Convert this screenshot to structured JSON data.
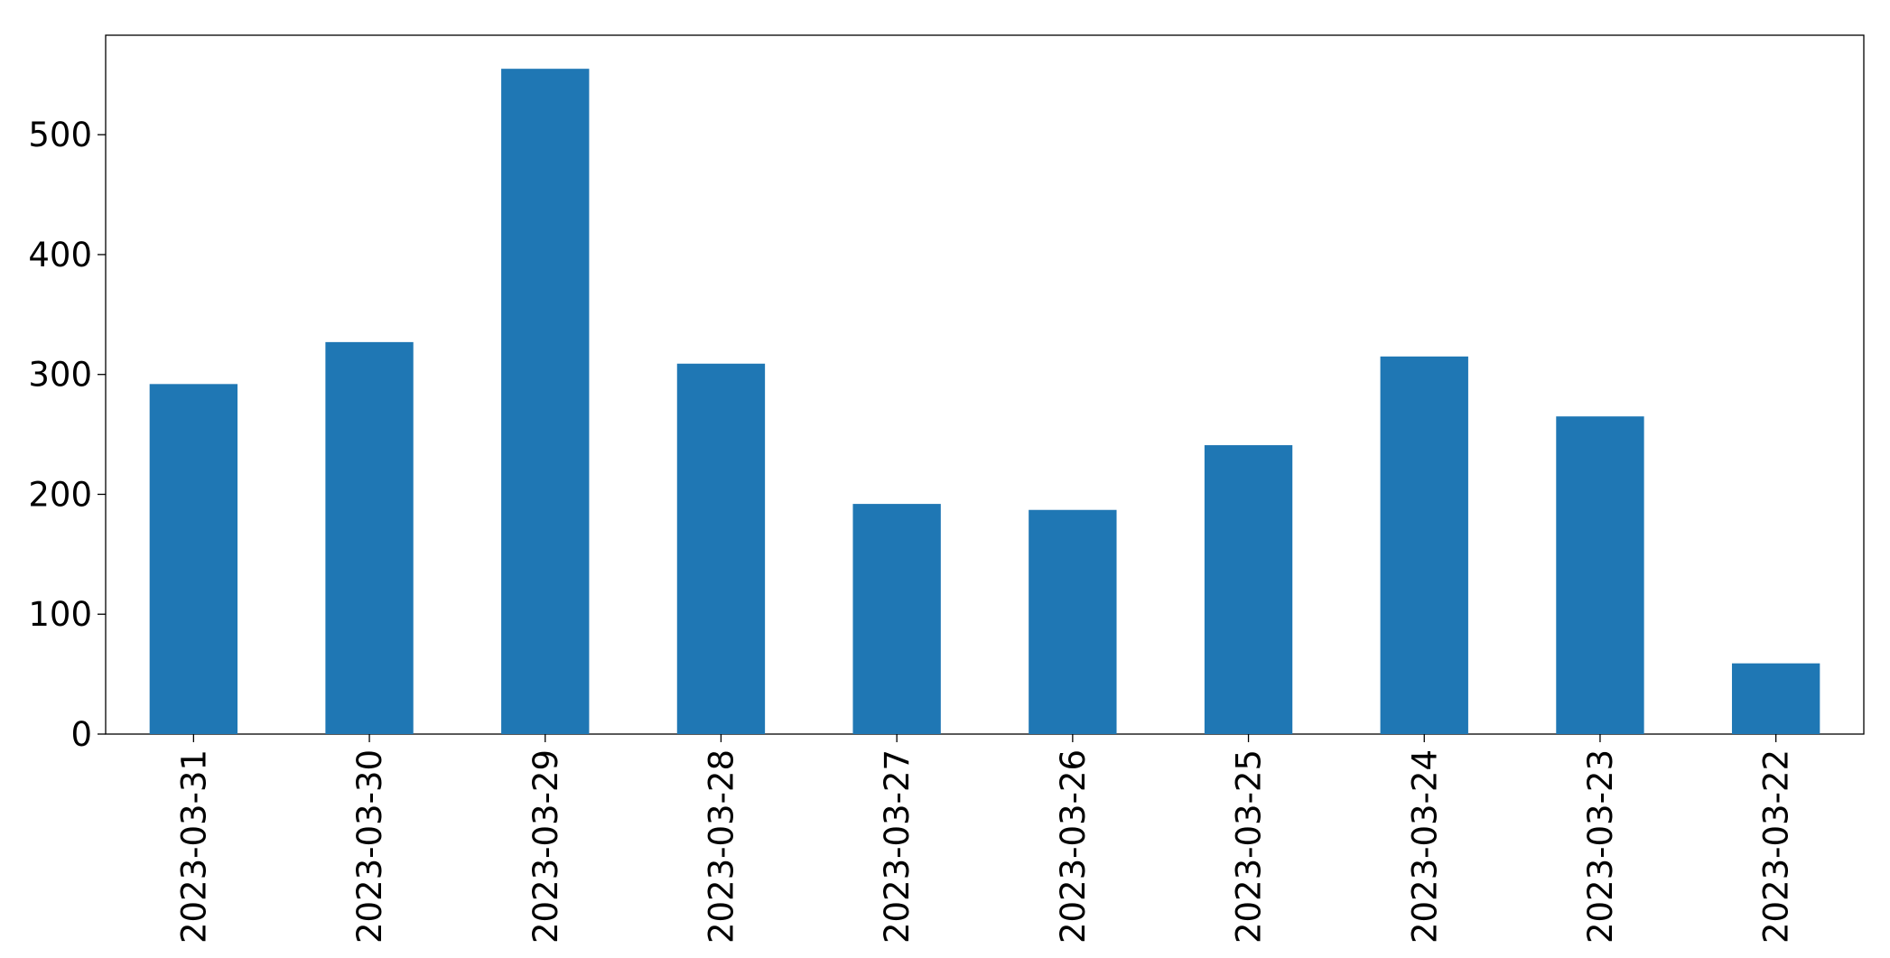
{
  "chart_data": {
    "type": "bar",
    "categories": [
      "2023-03-31",
      "2023-03-30",
      "2023-03-29",
      "2023-03-28",
      "2023-03-27",
      "2023-03-26",
      "2023-03-25",
      "2023-03-24",
      "2023-03-23",
      "2023-03-22"
    ],
    "values": [
      292,
      327,
      555,
      309,
      192,
      187,
      241,
      315,
      265,
      59
    ],
    "color": "#1f77b4",
    "ylim": [
      0,
      583
    ],
    "yticks": [
      0,
      100,
      200,
      300,
      400,
      500
    ],
    "grid": false
  }
}
